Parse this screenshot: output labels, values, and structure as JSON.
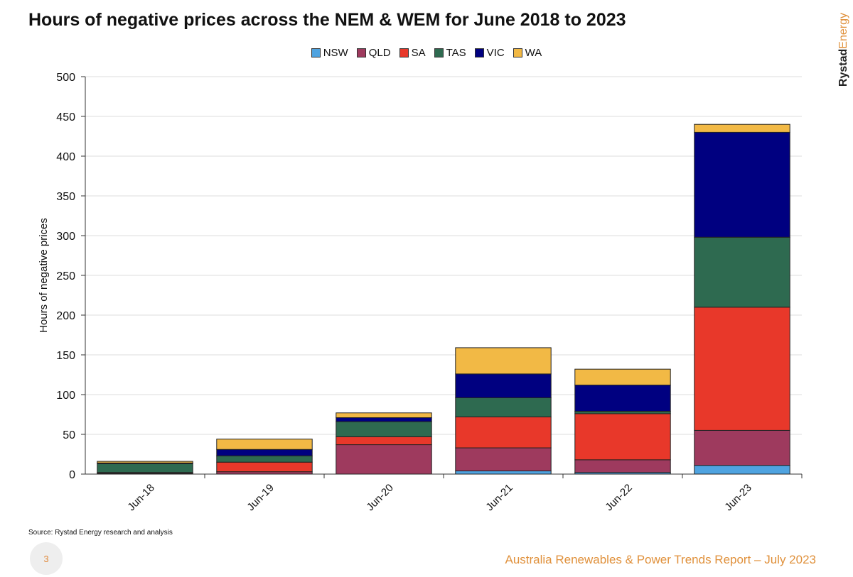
{
  "chart_data": {
    "type": "bar",
    "stacked": true,
    "title": "Hours of negative prices across the NEM & WEM for June  2018 to 2023",
    "ylabel": "Hours of negative prices",
    "xlabel": "",
    "ylim": [
      0,
      500
    ],
    "yticks": [
      0,
      50,
      100,
      150,
      200,
      250,
      300,
      350,
      400,
      450,
      500
    ],
    "grid": true,
    "legend": "top-center",
    "categories": [
      "Jun-18",
      "Jun-19",
      "Jun-20",
      "Jun-21",
      "Jun-22",
      "Jun-23"
    ],
    "series": [
      {
        "name": "NSW",
        "color": "#4fa3e0",
        "values": [
          0,
          0,
          0,
          4,
          2,
          11
        ]
      },
      {
        "name": "QLD",
        "color": "#9e3a5e",
        "values": [
          1,
          3,
          37,
          29,
          16,
          44
        ]
      },
      {
        "name": "SA",
        "color": "#e8382a",
        "values": [
          1,
          12,
          10,
          39,
          58,
          155
        ]
      },
      {
        "name": "TAS",
        "color": "#2e6a50",
        "values": [
          11,
          8,
          19,
          24,
          3,
          88
        ]
      },
      {
        "name": "VIC",
        "color": "#000080",
        "values": [
          1,
          8,
          5,
          30,
          33,
          132
        ]
      },
      {
        "name": "WA",
        "color": "#f2b945",
        "values": [
          2,
          13,
          6,
          33,
          20,
          10
        ]
      }
    ]
  },
  "source": "Source: Rystad Energy research and analysis",
  "page_number": "3",
  "footer": "Australia Renewables & Power Trends Report – July 2023",
  "logo": {
    "part1": "Rystad",
    "part2": "Energy"
  }
}
